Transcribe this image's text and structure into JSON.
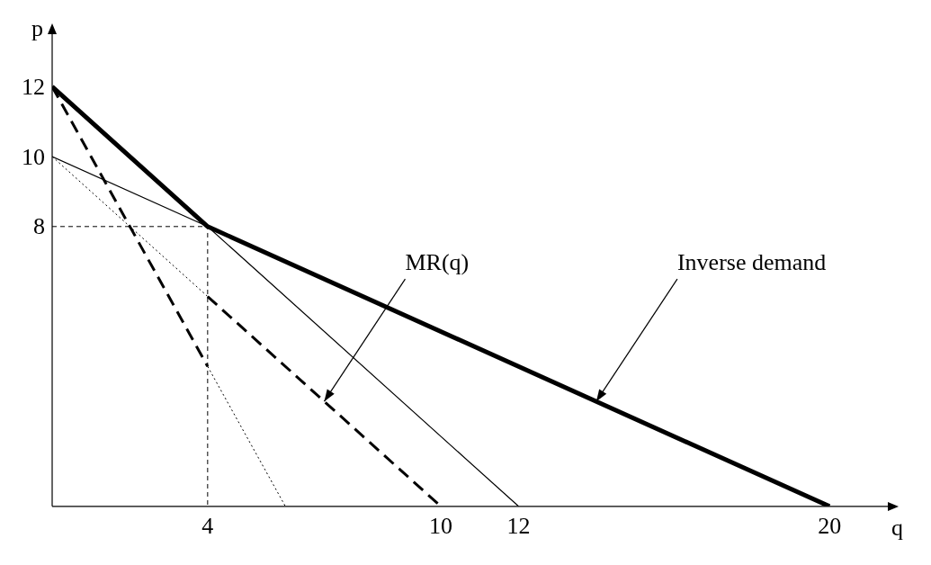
{
  "chart_data": {
    "type": "line",
    "xlabel": "q",
    "ylabel": "p",
    "xlim": [
      0,
      21.5
    ],
    "ylim": [
      0,
      13.5
    ],
    "xticks": [
      4,
      10,
      12,
      20
    ],
    "yticks": [
      8,
      10,
      12
    ],
    "grid": false,
    "legend": false,
    "marker": "none",
    "series": [
      {
        "color": "#000000",
        "line_style": "solid",
        "x": [
          0,
          4,
          20
        ],
        "values": [
          12,
          8,
          0
        ]
      },
      {
        "color": "#000000",
        "line_style": "solid",
        "x": [
          0,
          4,
          12
        ],
        "values": [
          10,
          8,
          0
        ]
      },
      {
        "color": "#000000",
        "line_style": "dashed",
        "x": [
          0,
          4
        ],
        "values": [
          12,
          4
        ]
      },
      {
        "color": "#000000",
        "line_style": "dashed",
        "x": [
          4,
          10
        ],
        "values": [
          6,
          0
        ]
      },
      {
        "color": "#000000",
        "line_style": "dotted",
        "x": [
          4,
          6
        ],
        "values": [
          4,
          0
        ]
      },
      {
        "color": "#000000",
        "line_style": "dotted",
        "x": [
          0,
          4
        ],
        "values": [
          10,
          6
        ]
      },
      {
        "color": "#000000",
        "line_style": "dashed",
        "x": [
          0,
          4,
          4
        ],
        "values": [
          8,
          8,
          0
        ]
      }
    ],
    "annotations": [
      {
        "text": "MR(q)",
        "x": 7,
        "y": 3
      },
      {
        "text": "Inverse demand",
        "x": 14,
        "y": 3
      }
    ]
  }
}
